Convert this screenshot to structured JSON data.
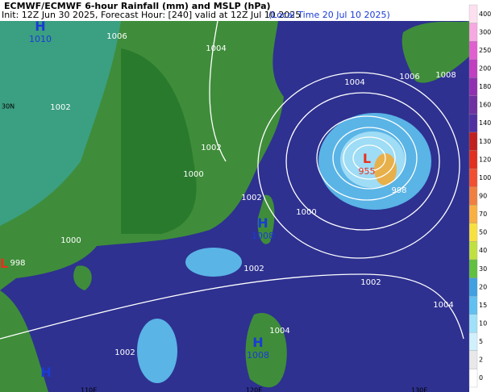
{
  "header": {
    "title": "ECMWF/ECMWF 6-hour Rainfall (mm) and MSLP (hPa)",
    "init": "Init: 12Z Jun 30 2025, Forecast Hour: [240] valid at 12Z Jul 10 2025",
    "local_time": "(Local Time 20 Jul 10 2025)"
  },
  "pressure_centers": [
    {
      "symbol": "H",
      "value": 1010
    },
    {
      "symbol": "L",
      "value": 955
    },
    {
      "symbol": "H",
      "value": 1008
    },
    {
      "symbol": "H",
      "value": 1008
    },
    {
      "symbol": "L"
    },
    {
      "symbol": "H"
    }
  ],
  "contour_labels": [
    1004,
    1006,
    1004,
    1006,
    1008,
    1002,
    1002,
    1000,
    1002,
    1000,
    998,
    1000,
    998,
    1002,
    1002,
    1004,
    1002,
    1004
  ],
  "axis_labels": {
    "lat": [
      "30N"
    ],
    "lon": [
      "110E",
      "120E",
      "130E"
    ]
  },
  "colorbar_labels": [
    400,
    300,
    250,
    200,
    180,
    160,
    140,
    130,
    120,
    100,
    90,
    70,
    50,
    40,
    30,
    20,
    15,
    10,
    5,
    2,
    0
  ]
}
